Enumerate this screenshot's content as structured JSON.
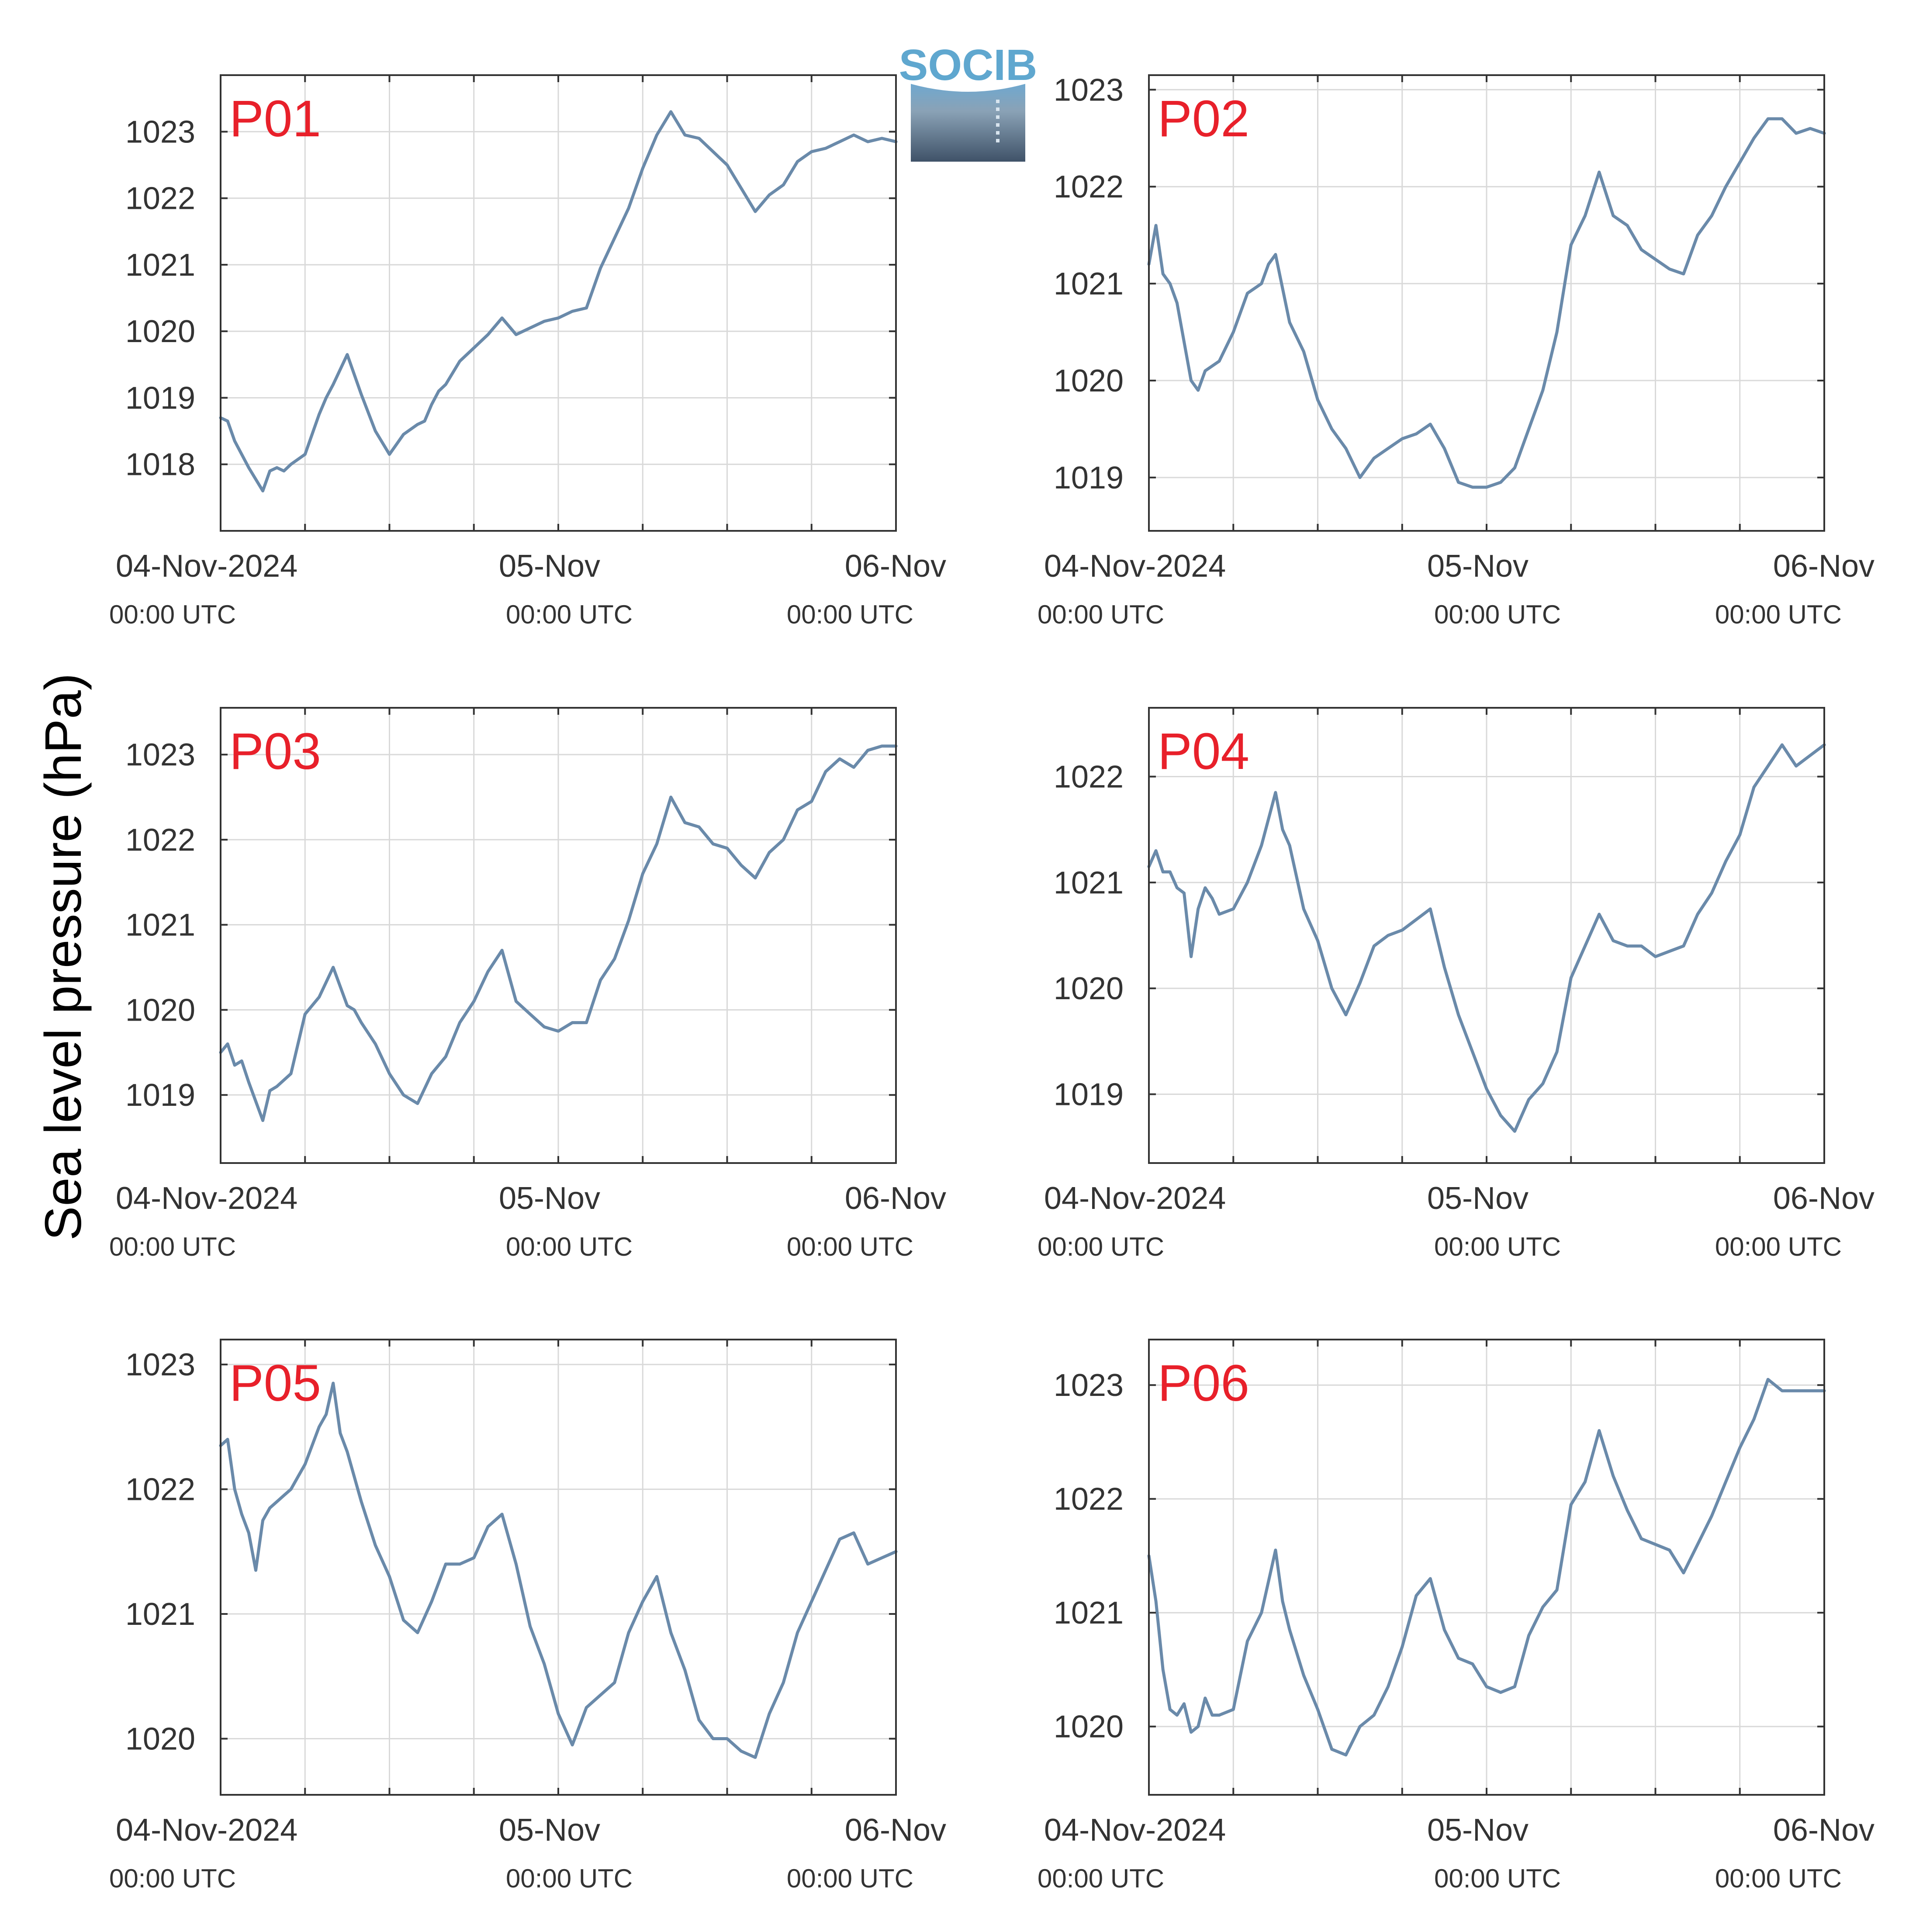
{
  "figure": {
    "ylabel": "Sea level pressure (hPa)",
    "logo_text": "SOCIB",
    "colors": {
      "line": "#6a8aaa",
      "panel_label": "#e8202a",
      "grid": "#d9d9d9",
      "axis": "#333333",
      "tick_text": "#333333"
    }
  },
  "chart_data": [
    {
      "type": "line",
      "label": "P01",
      "x_ticks": [
        {
          "main": "04-Nov-2024",
          "sub": "00:00 UTC"
        },
        {
          "main": "05-Nov",
          "sub": "00:00 UTC"
        },
        {
          "main": "06-Nov",
          "sub": "00:00 UTC"
        }
      ],
      "xlim_hours": [
        0,
        48
      ],
      "grid": true,
      "ylim": [
        1017,
        1023.85
      ],
      "yticks": [
        1018,
        1019,
        1020,
        1021,
        1022,
        1023
      ],
      "x": [
        0,
        0.5,
        1,
        2,
        3,
        3.5,
        4,
        4.5,
        5,
        6,
        7,
        7.5,
        8,
        9,
        10,
        11,
        12,
        12.5,
        13,
        14,
        14.5,
        15,
        15.5,
        16,
        17,
        18,
        19,
        20,
        21,
        22,
        23,
        24,
        25,
        26,
        27,
        28,
        29,
        30,
        31,
        32,
        33,
        34,
        35,
        36,
        37,
        38,
        39,
        40,
        41,
        42,
        43,
        44,
        45,
        46,
        47,
        48
      ],
      "y": [
        1018.7,
        1018.65,
        1018.35,
        1017.95,
        1017.6,
        1017.9,
        1017.95,
        1017.9,
        1018.0,
        1018.15,
        1018.75,
        1019.0,
        1019.2,
        1019.65,
        1019.05,
        1018.5,
        1018.15,
        1018.3,
        1018.45,
        1018.6,
        1018.65,
        1018.9,
        1019.1,
        1019.2,
        1019.55,
        1019.75,
        1019.95,
        1020.2,
        1019.95,
        1020.05,
        1020.15,
        1020.2,
        1020.3,
        1020.35,
        1020.95,
        1021.4,
        1021.85,
        1022.45,
        1022.95,
        1023.3,
        1022.95,
        1022.9,
        1022.7,
        1022.5,
        1022.15,
        1021.8,
        1022.05,
        1022.2,
        1022.55,
        1022.7,
        1022.75,
        1022.85,
        1022.95,
        1022.85,
        1022.9,
        1022.85
      ]
    },
    {
      "type": "line",
      "label": "P02",
      "x_ticks": [
        {
          "main": "04-Nov-2024",
          "sub": "00:00 UTC"
        },
        {
          "main": "05-Nov",
          "sub": "00:00 UTC"
        },
        {
          "main": "06-Nov",
          "sub": "00:00 UTC"
        }
      ],
      "xlim_hours": [
        0,
        48
      ],
      "grid": true,
      "ylim": [
        1018.45,
        1023.15
      ],
      "yticks": [
        1019,
        1020,
        1021,
        1022,
        1023
      ],
      "x": [
        0,
        0.5,
        1,
        1.5,
        2,
        3,
        3.5,
        4,
        5,
        6,
        7,
        8,
        8.5,
        9,
        10,
        11,
        12,
        13,
        14,
        15,
        16,
        17,
        18,
        19,
        20,
        21,
        22,
        23,
        24,
        25,
        26,
        27,
        28,
        29,
        30,
        31,
        32,
        33,
        34,
        35,
        36,
        37,
        38,
        39,
        40,
        41,
        42,
        43,
        44,
        45,
        46,
        47,
        48
      ],
      "y": [
        1021.2,
        1021.6,
        1021.1,
        1021.0,
        1020.8,
        1020.0,
        1019.9,
        1020.1,
        1020.2,
        1020.5,
        1020.9,
        1021.0,
        1021.2,
        1021.3,
        1020.6,
        1020.3,
        1019.8,
        1019.5,
        1019.3,
        1019.0,
        1019.2,
        1019.3,
        1019.4,
        1019.45,
        1019.55,
        1019.3,
        1018.95,
        1018.9,
        1018.9,
        1018.95,
        1019.1,
        1019.5,
        1019.9,
        1020.5,
        1021.4,
        1021.7,
        1022.15,
        1021.7,
        1021.6,
        1021.35,
        1021.25,
        1021.15,
        1021.1,
        1021.5,
        1021.7,
        1022.0,
        1022.25,
        1022.5,
        1022.7,
        1022.7,
        1022.55,
        1022.6,
        1022.55
      ]
    },
    {
      "type": "line",
      "label": "P03",
      "x_ticks": [
        {
          "main": "04-Nov-2024",
          "sub": "00:00 UTC"
        },
        {
          "main": "05-Nov",
          "sub": "00:00 UTC"
        },
        {
          "main": "06-Nov",
          "sub": "00:00 UTC"
        }
      ],
      "xlim_hours": [
        0,
        48
      ],
      "grid": true,
      "ylim": [
        1018.2,
        1023.55
      ],
      "yticks": [
        1019,
        1020,
        1021,
        1022,
        1023
      ],
      "x": [
        0,
        0.5,
        1,
        1.5,
        2,
        3,
        3.5,
        4,
        5,
        6,
        7,
        8,
        9,
        9.5,
        10,
        11,
        12,
        13,
        14,
        15,
        16,
        17,
        18,
        19,
        20,
        21,
        22,
        23,
        24,
        25,
        26,
        27,
        28,
        29,
        30,
        31,
        32,
        33,
        34,
        35,
        36,
        37,
        38,
        39,
        40,
        41,
        42,
        43,
        44,
        45,
        46,
        47,
        48
      ],
      "y": [
        1019.5,
        1019.6,
        1019.35,
        1019.4,
        1019.15,
        1018.7,
        1019.05,
        1019.1,
        1019.25,
        1019.95,
        1020.15,
        1020.5,
        1020.05,
        1020.0,
        1019.85,
        1019.6,
        1019.25,
        1019.0,
        1018.9,
        1019.25,
        1019.45,
        1019.85,
        1020.1,
        1020.45,
        1020.7,
        1020.1,
        1019.95,
        1019.8,
        1019.75,
        1019.85,
        1019.85,
        1020.35,
        1020.6,
        1021.05,
        1021.6,
        1021.95,
        1022.5,
        1022.2,
        1022.15,
        1021.95,
        1021.9,
        1021.7,
        1021.55,
        1021.85,
        1022.0,
        1022.35,
        1022.45,
        1022.8,
        1022.95,
        1022.85,
        1023.05,
        1023.1,
        1023.1
      ]
    },
    {
      "type": "line",
      "label": "P04",
      "x_ticks": [
        {
          "main": "04-Nov-2024",
          "sub": "00:00 UTC"
        },
        {
          "main": "05-Nov",
          "sub": "00:00 UTC"
        },
        {
          "main": "06-Nov",
          "sub": "00:00 UTC"
        }
      ],
      "xlim_hours": [
        0,
        48
      ],
      "grid": true,
      "ylim": [
        1018.35,
        1022.65
      ],
      "yticks": [
        1019,
        1020,
        1021,
        1022
      ],
      "x": [
        0,
        0.5,
        1,
        1.5,
        2,
        2.5,
        3,
        3.5,
        4,
        4.5,
        5,
        6,
        7,
        8,
        9,
        9.5,
        10,
        11,
        12,
        13,
        14,
        15,
        16,
        17,
        18,
        19,
        20,
        21,
        22,
        23,
        24,
        25,
        26,
        27,
        28,
        29,
        30,
        31,
        32,
        33,
        34,
        35,
        36,
        37,
        38,
        39,
        40,
        41,
        42,
        43,
        44,
        45,
        46,
        47,
        48
      ],
      "y": [
        1021.15,
        1021.3,
        1021.1,
        1021.1,
        1020.95,
        1020.9,
        1020.3,
        1020.75,
        1020.95,
        1020.85,
        1020.7,
        1020.75,
        1021.0,
        1021.35,
        1021.85,
        1021.5,
        1021.35,
        1020.75,
        1020.45,
        1020.0,
        1019.75,
        1020.05,
        1020.4,
        1020.5,
        1020.55,
        1020.65,
        1020.75,
        1020.2,
        1019.75,
        1019.4,
        1019.05,
        1018.8,
        1018.65,
        1018.95,
        1019.1,
        1019.4,
        1020.1,
        1020.4,
        1020.7,
        1020.45,
        1020.4,
        1020.4,
        1020.3,
        1020.35,
        1020.4,
        1020.7,
        1020.9,
        1021.2,
        1021.45,
        1021.9,
        1022.1,
        1022.3,
        1022.1,
        1022.2,
        1022.3
      ]
    },
    {
      "type": "line",
      "label": "P05",
      "x_ticks": [
        {
          "main": "04-Nov-2024",
          "sub": "00:00 UTC"
        },
        {
          "main": "05-Nov",
          "sub": "00:00 UTC"
        },
        {
          "main": "06-Nov",
          "sub": "00:00 UTC"
        }
      ],
      "xlim_hours": [
        0,
        48
      ],
      "grid": true,
      "ylim": [
        1019.55,
        1023.2
      ],
      "yticks": [
        1020,
        1021,
        1022,
        1023
      ],
      "x": [
        0,
        0.5,
        1,
        1.5,
        2,
        2.5,
        3,
        3.5,
        4,
        4.5,
        5,
        5.5,
        6,
        6.5,
        7,
        7.5,
        8,
        8.5,
        9,
        9.5,
        10,
        11,
        12,
        13,
        14,
        15,
        16,
        17,
        18,
        19,
        20,
        21,
        22,
        23,
        24,
        25,
        26,
        27,
        28,
        29,
        30,
        31,
        32,
        33,
        34,
        35,
        36,
        37,
        38,
        39,
        40,
        41,
        42,
        43,
        44,
        45,
        46,
        47,
        48
      ],
      "y": [
        1022.35,
        1022.4,
        1022.0,
        1021.8,
        1021.65,
        1021.35,
        1021.75,
        1021.85,
        1021.9,
        1021.95,
        1022.0,
        1022.1,
        1022.2,
        1022.35,
        1022.5,
        1022.6,
        1022.85,
        1022.45,
        1022.3,
        1022.1,
        1021.9,
        1021.55,
        1021.3,
        1020.95,
        1020.85,
        1021.1,
        1021.4,
        1021.4,
        1021.45,
        1021.7,
        1021.8,
        1021.4,
        1020.9,
        1020.6,
        1020.2,
        1019.95,
        1020.25,
        1020.35,
        1020.45,
        1020.85,
        1021.1,
        1021.3,
        1020.85,
        1020.55,
        1020.15,
        1020.0,
        1020.0,
        1019.9,
        1019.85,
        1020.2,
        1020.45,
        1020.85,
        1021.1,
        1021.35,
        1021.6,
        1021.65,
        1021.4,
        1021.45,
        1021.5
      ]
    },
    {
      "type": "line",
      "label": "P06",
      "x_ticks": [
        {
          "main": "04-Nov-2024",
          "sub": "00:00 UTC"
        },
        {
          "main": "05-Nov",
          "sub": "00:00 UTC"
        },
        {
          "main": "06-Nov",
          "sub": "00:00 UTC"
        }
      ],
      "xlim_hours": [
        0,
        48
      ],
      "grid": true,
      "ylim": [
        1019.4,
        1023.4
      ],
      "yticks": [
        1020,
        1021,
        1022,
        1023
      ],
      "x": [
        0,
        0.5,
        1,
        1.5,
        2,
        2.5,
        3,
        3.5,
        4,
        4.5,
        5,
        6,
        7,
        8,
        9,
        9.5,
        10,
        11,
        12,
        13,
        14,
        15,
        16,
        17,
        18,
        19,
        20,
        21,
        22,
        23,
        24,
        25,
        26,
        27,
        28,
        29,
        30,
        31,
        32,
        33,
        34,
        35,
        36,
        37,
        38,
        39,
        40,
        41,
        42,
        43,
        44,
        45,
        46,
        47,
        48
      ],
      "y": [
        1021.5,
        1021.1,
        1020.5,
        1020.15,
        1020.1,
        1020.2,
        1019.95,
        1020.0,
        1020.25,
        1020.1,
        1020.1,
        1020.15,
        1020.75,
        1021.0,
        1021.55,
        1021.1,
        1020.85,
        1020.45,
        1020.15,
        1019.8,
        1019.75,
        1020.0,
        1020.1,
        1020.35,
        1020.7,
        1021.15,
        1021.3,
        1020.85,
        1020.6,
        1020.55,
        1020.35,
        1020.3,
        1020.35,
        1020.8,
        1021.05,
        1021.2,
        1021.95,
        1022.15,
        1022.6,
        1022.2,
        1021.9,
        1021.65,
        1021.6,
        1021.55,
        1021.35,
        1021.6,
        1021.85,
        1022.15,
        1022.45,
        1022.7,
        1023.05,
        1022.95,
        1022.95,
        1022.95,
        1022.95
      ]
    }
  ]
}
